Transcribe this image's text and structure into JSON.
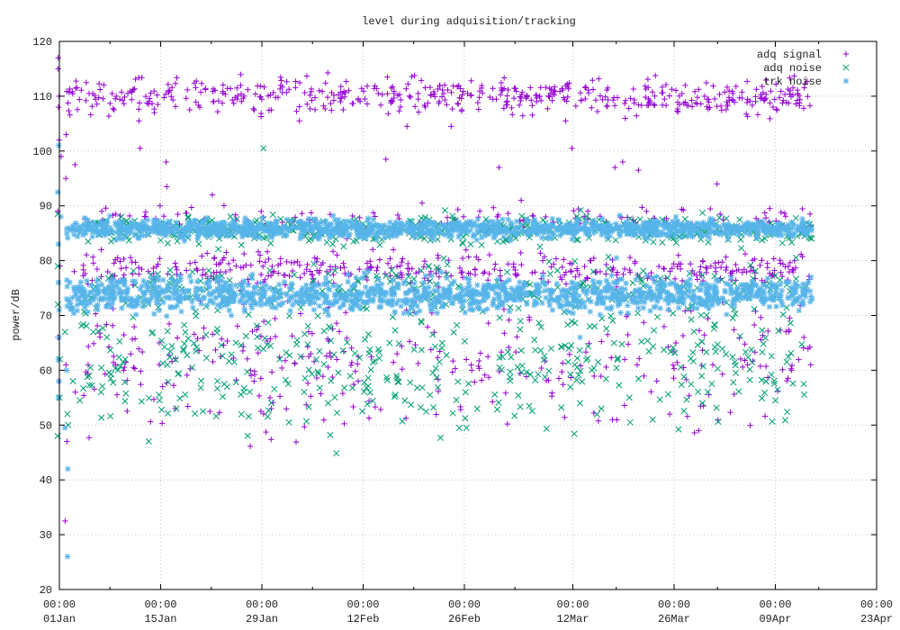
{
  "chart_data": {
    "type": "scatter",
    "title": "level during adquisition/tracking",
    "xlabel": "",
    "ylabel": "power/dB",
    "x_type": "date",
    "xlim": [
      "2024-01-01",
      "2024-04-23"
    ],
    "ylim": [
      20,
      120
    ],
    "yticks": [
      20,
      30,
      40,
      50,
      60,
      70,
      80,
      90,
      100,
      110,
      120
    ],
    "xticks": [
      {
        "date": "2024-01-01",
        "time": "00:00",
        "label": "01Jan"
      },
      {
        "date": "2024-01-15",
        "time": "00:00",
        "label": "15Jan"
      },
      {
        "date": "2024-01-29",
        "time": "00:00",
        "label": "29Jan"
      },
      {
        "date": "2024-02-12",
        "time": "00:00",
        "label": "12Feb"
      },
      {
        "date": "2024-02-26",
        "time": "00:00",
        "label": "26Feb"
      },
      {
        "date": "2024-03-12",
        "time": "00:00",
        "label": "12Mar"
      },
      {
        "date": "2024-03-26",
        "time": "00:00",
        "label": "26Mar"
      },
      {
        "date": "2024-04-09",
        "time": "00:00",
        "label": "09Apr"
      },
      {
        "date": "2024-04-23",
        "time": "00:00",
        "label": "23Apr"
      }
    ],
    "grid": true,
    "legend_position": "top-right",
    "series": [
      {
        "name": "adq signal",
        "marker": "+",
        "color": "#9400d3",
        "points": [
          [
            "2024-01-01",
            117.0
          ],
          [
            "2024-01-01",
            115.0
          ],
          [
            "2024-01-01",
            110.0
          ],
          [
            "2024-01-01",
            108.0
          ],
          [
            "2024-01-01",
            102.0
          ],
          [
            "2024-01-01",
            99.0
          ],
          [
            "2024-01-01",
            89.0
          ],
          [
            "2024-01-01",
            79.0
          ],
          [
            "2024-01-01",
            66.0
          ],
          [
            "2024-01-01",
            58.0
          ],
          [
            "2024-01-02",
            103.0
          ],
          [
            "2024-01-02",
            95.0
          ],
          [
            "2024-01-02",
            47.0
          ],
          [
            "2024-01-02",
            32.5
          ],
          [
            "2024-01-02",
            61.0
          ],
          [
            "2024-01-03",
            97.5
          ],
          [
            "2024-01-03",
            78.0
          ],
          [
            "2024-01-03",
            56.0
          ],
          [
            "2024-01-05",
            110.5
          ],
          [
            "2024-01-07",
            89.0
          ],
          [
            "2024-01-09",
            110.0
          ],
          [
            "2024-01-10",
            60.0
          ],
          [
            "2024-01-12",
            105.5
          ],
          [
            "2024-01-12",
            100.5
          ],
          [
            "2024-01-13",
            88.0
          ],
          [
            "2024-01-14",
            107.0
          ],
          [
            "2024-01-15",
            90.0
          ],
          [
            "2024-01-15",
            65.0
          ],
          [
            "2024-01-16",
            98.0
          ],
          [
            "2024-01-16",
            93.5
          ],
          [
            "2024-01-17",
            53.0
          ],
          [
            "2024-01-20",
            78.5
          ],
          [
            "2024-01-22",
            92.0
          ],
          [
            "2024-01-22",
            52.5
          ],
          [
            "2024-01-25",
            86.0
          ],
          [
            "2024-01-28",
            58.0
          ],
          [
            "2024-02-03",
            105.5
          ],
          [
            "2024-02-05",
            63.0
          ],
          [
            "2024-02-10",
            84.0
          ],
          [
            "2024-02-15",
            98.5
          ],
          [
            "2024-02-18",
            104.5
          ],
          [
            "2024-02-20",
            90.5
          ],
          [
            "2024-02-24",
            104.5
          ],
          [
            "2024-02-27",
            60.0
          ],
          [
            "2024-03-02",
            97.0
          ],
          [
            "2024-03-05",
            91.0
          ],
          [
            "2024-03-08",
            88.0
          ],
          [
            "2024-03-11",
            105.5
          ],
          [
            "2024-03-12",
            100.5
          ],
          [
            "2024-03-14",
            89.0
          ],
          [
            "2024-03-18",
            97.0
          ],
          [
            "2024-03-19",
            98.0
          ],
          [
            "2024-03-21",
            96.5
          ],
          [
            "2024-03-22",
            89.0
          ],
          [
            "2024-03-30",
            53.5
          ],
          [
            "2024-04-01",
            94.0
          ],
          [
            "2024-04-05",
            61.0
          ],
          [
            "2024-04-11",
            60.0
          ],
          [
            "2024-04-13",
            66.0
          ],
          [
            "2024-04-14",
            61.0
          ]
        ]
      },
      {
        "name": "adq noise",
        "marker": "x",
        "color": "#009e73",
        "points": [
          [
            "2024-01-01",
            88.5
          ],
          [
            "2024-01-01",
            79.0
          ],
          [
            "2024-01-01",
            72.0
          ],
          [
            "2024-01-01",
            62.0
          ],
          [
            "2024-01-01",
            55.0
          ],
          [
            "2024-01-01",
            48.0
          ],
          [
            "2024-01-02",
            67.0
          ],
          [
            "2024-01-02",
            52.0
          ],
          [
            "2024-01-02",
            50.0
          ],
          [
            "2024-01-03",
            58.0
          ],
          [
            "2024-01-04",
            54.5
          ],
          [
            "2024-01-07",
            56.0
          ],
          [
            "2024-01-10",
            62.0
          ],
          [
            "2024-01-15",
            54.5
          ],
          [
            "2024-01-17",
            53.0
          ],
          [
            "2024-01-21",
            52.5
          ],
          [
            "2024-01-24",
            57.0
          ],
          [
            "2024-01-29",
            100.5
          ],
          [
            "2024-02-07",
            54.0
          ],
          [
            "2024-02-12",
            52.5
          ],
          [
            "2024-02-21",
            55.5
          ],
          [
            "2024-02-26",
            56.0
          ],
          [
            "2024-03-06",
            53.5
          ],
          [
            "2024-03-13",
            54.0
          ],
          [
            "2024-03-20",
            50.5
          ],
          [
            "2024-03-23",
            51.0
          ],
          [
            "2024-03-30",
            54.0
          ],
          [
            "2024-04-09",
            54.5
          ],
          [
            "2024-04-13",
            57.5
          ],
          [
            "2024-04-14",
            84.0
          ]
        ]
      },
      {
        "name": "trk noise",
        "marker": "*",
        "color": "#56b4e9",
        "points": [
          [
            "2024-01-01",
            101.0
          ],
          [
            "2024-01-01",
            92.5
          ],
          [
            "2024-01-01",
            88.0
          ],
          [
            "2024-01-01",
            83.0
          ],
          [
            "2024-01-01",
            76.0
          ],
          [
            "2024-01-01",
            71.0
          ],
          [
            "2024-01-01",
            66.0
          ],
          [
            "2024-01-01",
            62.0
          ],
          [
            "2024-01-01",
            58.0
          ],
          [
            "2024-01-01",
            55.0
          ],
          [
            "2024-01-02",
            60.0
          ],
          [
            "2024-01-02",
            49.5
          ],
          [
            "2024-01-02",
            42.0
          ],
          [
            "2024-01-02",
            26.0
          ],
          [
            "2024-03-13",
            66.0
          ],
          [
            "2024-03-18",
            80.5
          ],
          [
            "2024-04-14",
            73.0
          ]
        ]
      }
    ],
    "bands": [
      {
        "series": "adq signal",
        "from": "2024-01-02",
        "to": "2024-04-14",
        "center": 110.0,
        "spread": 1.6,
        "count": 520
      },
      {
        "series": "adq signal",
        "from": "2024-01-04",
        "to": "2024-04-14",
        "center": 78.5,
        "spread": 1.4,
        "count": 380
      },
      {
        "series": "adq signal",
        "from": "2024-01-04",
        "to": "2024-04-14",
        "center": 87.5,
        "spread": 1.3,
        "count": 140
      },
      {
        "series": "adq signal",
        "from": "2024-01-04",
        "to": "2024-04-14",
        "center": 62.0,
        "spread": 6.0,
        "count": 320
      },
      {
        "series": "adq noise",
        "from": "2024-01-04",
        "to": "2024-04-14",
        "center": 85.5,
        "spread": 1.3,
        "count": 420
      },
      {
        "series": "adq noise",
        "from": "2024-01-04",
        "to": "2024-04-14",
        "center": 75.0,
        "spread": 2.4,
        "count": 220
      },
      {
        "series": "adq noise",
        "from": "2024-01-04",
        "to": "2024-04-14",
        "center": 62.0,
        "spread": 6.5,
        "count": 420
      },
      {
        "series": "trk noise",
        "from": "2024-01-02",
        "to": "2024-04-14",
        "center": 85.8,
        "spread": 0.8,
        "count": 1300
      },
      {
        "series": "trk noise",
        "from": "2024-01-02",
        "to": "2024-04-14",
        "center": 73.8,
        "spread": 1.5,
        "count": 1300
      }
    ]
  }
}
